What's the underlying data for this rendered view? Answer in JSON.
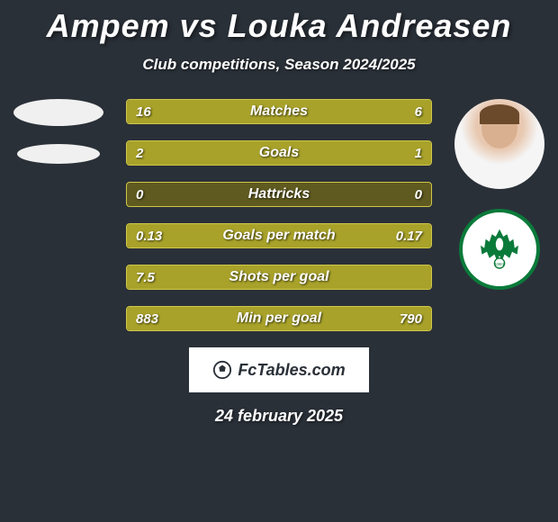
{
  "title": "Ampem vs Louka Andreasen",
  "subtitle": "Club competitions, Season 2024/2025",
  "date": "24 february 2025",
  "footer_label": "FcTables.com",
  "background_color": "#2a3038",
  "bar_fill_color": "#a8a22a",
  "bar_empty_color": "#5f5a1f",
  "bar_border_color": "#cfc64a",
  "title_fontsize": 36,
  "subtitle_fontsize": 17,
  "value_fontsize": 15,
  "label_fontsize": 16,
  "club_badge_border_color": "#0a7a3a",
  "club_badge_background_color": "#ffffff",
  "stats": [
    {
      "label": "Matches",
      "left_val": "16",
      "right_val": "6",
      "left_pct": 73,
      "right_pct": 27
    },
    {
      "label": "Goals",
      "left_val": "2",
      "right_val": "1",
      "left_pct": 67,
      "right_pct": 33
    },
    {
      "label": "Hattricks",
      "left_val": "0",
      "right_val": "0",
      "left_pct": 0,
      "right_pct": 0
    },
    {
      "label": "Goals per match",
      "left_val": "0.13",
      "right_val": "0.17",
      "left_pct": 43,
      "right_pct": 57
    },
    {
      "label": "Shots per goal",
      "left_val": "7.5",
      "right_val": "",
      "left_pct": 100,
      "right_pct": 0
    },
    {
      "label": "Min per goal",
      "left_val": "883",
      "right_val": "790",
      "left_pct": 47,
      "right_pct": 53
    }
  ]
}
